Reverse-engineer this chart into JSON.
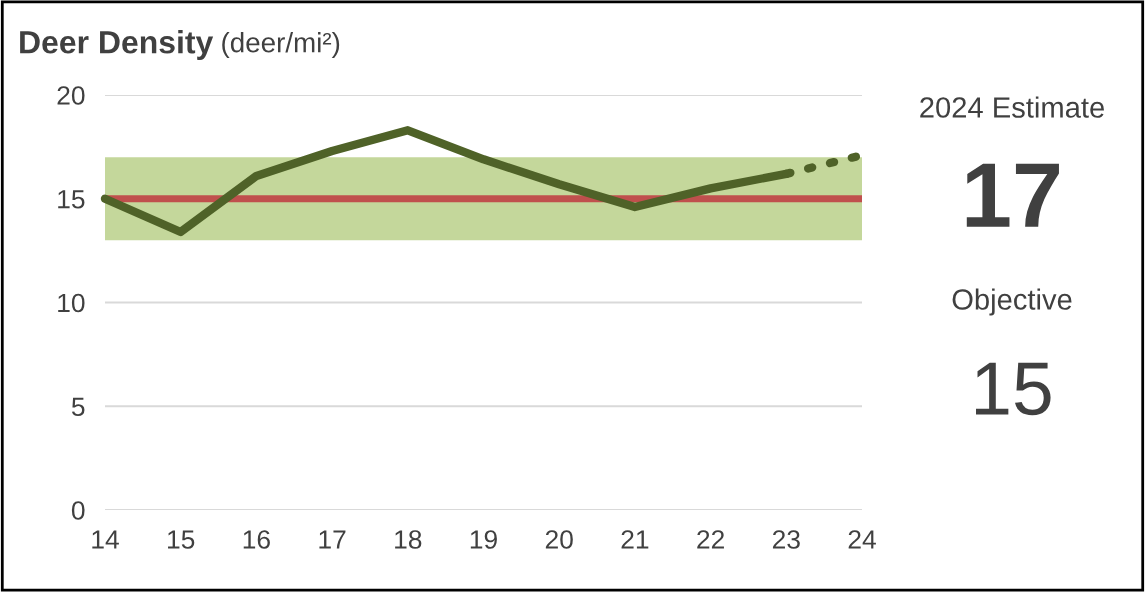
{
  "chart_data": {
    "type": "line",
    "title": "Deer Density",
    "subtitle": "(deer/mi²)",
    "x": [
      14,
      15,
      16,
      17,
      18,
      19,
      20,
      21,
      22,
      23
    ],
    "series": [
      {
        "color": "#4f6228",
        "values": [
          15.0,
          13.4,
          16.1,
          17.3,
          18.3,
          16.9,
          15.7,
          14.6,
          15.5,
          16.2
        ],
        "line_style": "solid"
      },
      {
        "color": "#4f6228",
        "x": [
          23,
          24
        ],
        "values": [
          16.2,
          17.1
        ],
        "line_style": "dotted"
      }
    ],
    "xlim": [
      14,
      24
    ],
    "xticks": [
      14,
      15,
      16,
      17,
      18,
      19,
      20,
      21,
      22,
      23,
      24
    ],
    "ylim": [
      0,
      20
    ],
    "yticks": [
      0,
      5,
      10,
      15,
      20
    ],
    "grid": "y",
    "legend": false,
    "marker": "none",
    "ref_lines": [
      {
        "axis": "y",
        "value": 15,
        "color": "#c0504d"
      }
    ],
    "bands": [
      {
        "axis": "y",
        "from": 13,
        "to": 17,
        "color": "#c4d79b"
      }
    ],
    "annotations": [
      "2024 Estimate",
      "17",
      "Objective",
      "15"
    ]
  }
}
